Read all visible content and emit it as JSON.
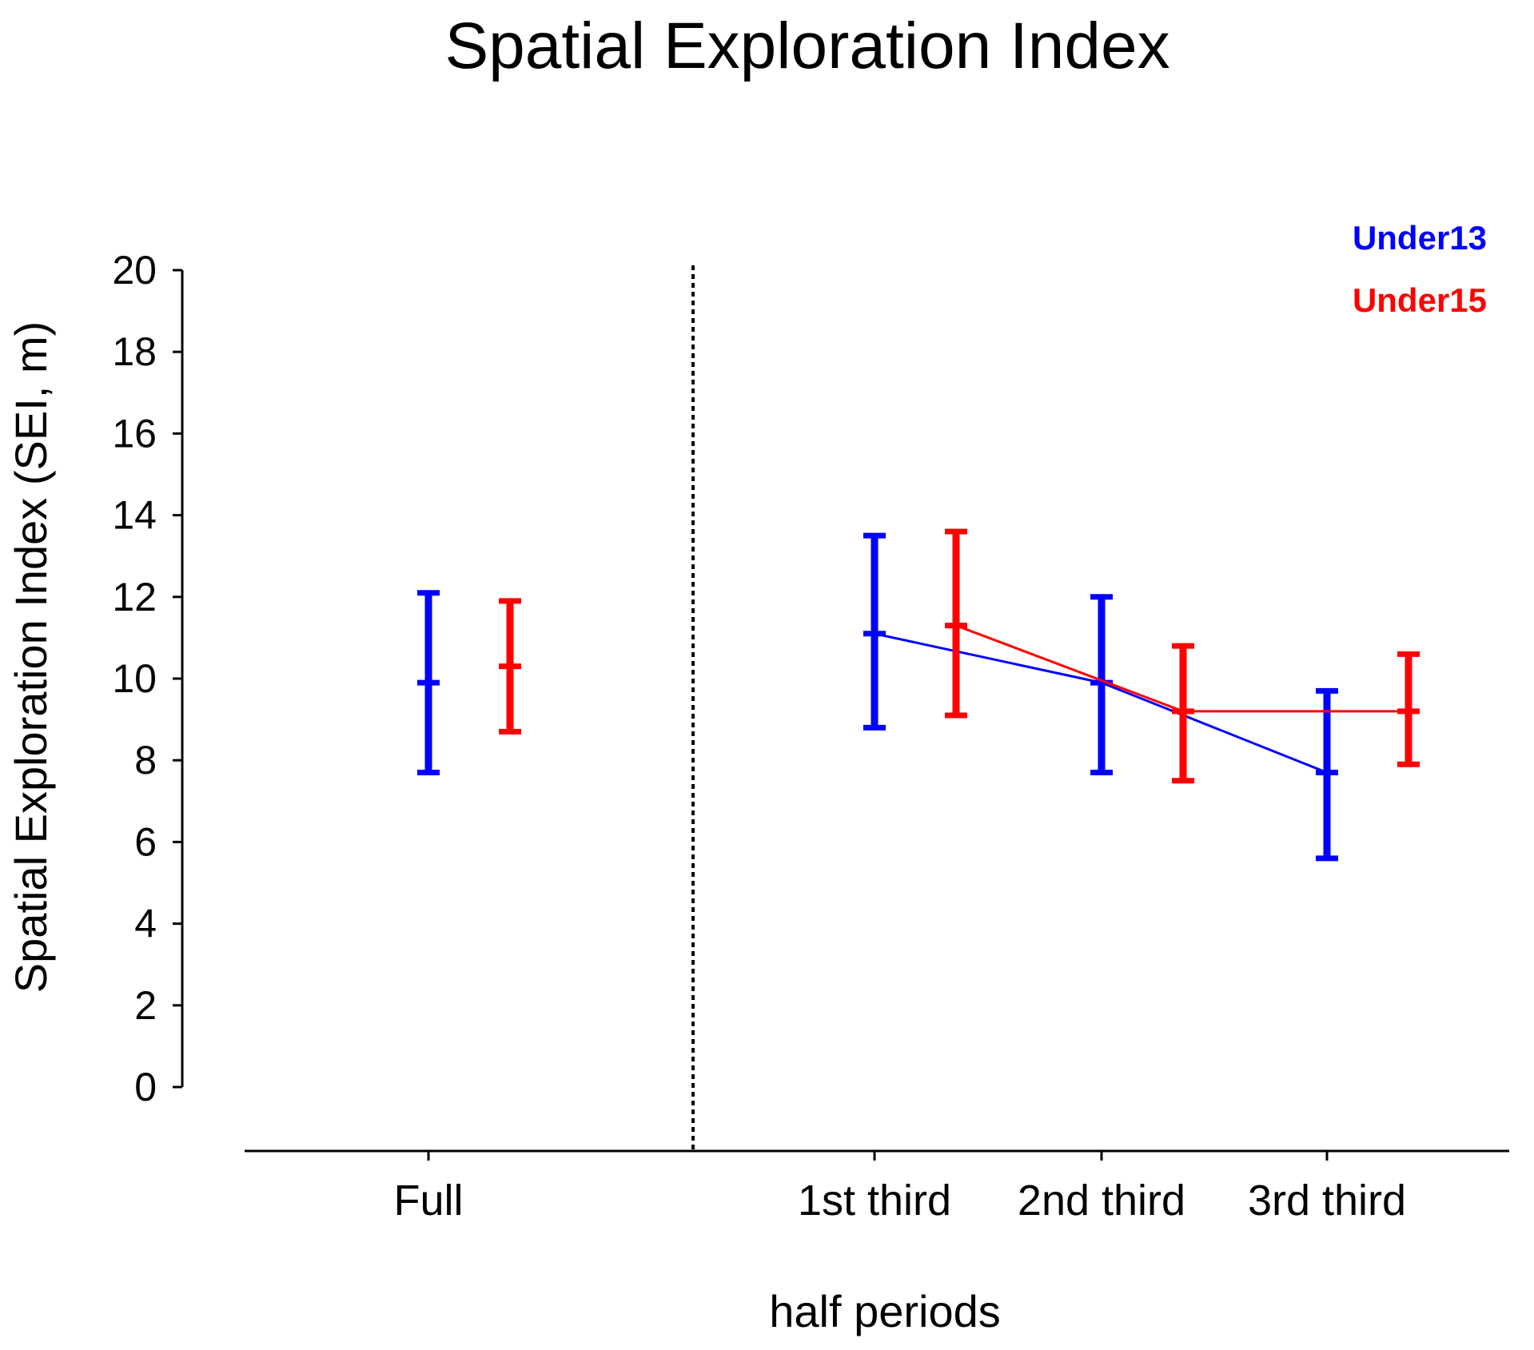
{
  "chart_data": {
    "type": "line",
    "title": "Spatial Exploration Index",
    "xlabel": "half periods",
    "ylabel": "Spatial Exploration Index (SEI, m)",
    "ylim": [
      0,
      20
    ],
    "yticks": [
      0,
      2,
      4,
      6,
      8,
      10,
      12,
      14,
      16,
      18,
      20
    ],
    "categories": [
      "Full",
      "1st third",
      "2nd third",
      "3rd third"
    ],
    "divider_after": "Full",
    "connected_categories": [
      "1st third",
      "2nd third",
      "3rd third"
    ],
    "legend_position": "top-right",
    "series": [
      {
        "name": "Under13",
        "color": "#0000ff",
        "values": [
          9.9,
          11.1,
          9.9,
          7.7
        ],
        "lower": [
          7.7,
          8.8,
          7.7,
          5.6
        ],
        "upper": [
          12.1,
          13.5,
          12.0,
          9.7
        ]
      },
      {
        "name": "Under15",
        "color": "#ff0000",
        "values": [
          10.3,
          11.3,
          9.2,
          9.2
        ],
        "lower": [
          8.7,
          9.1,
          7.5,
          7.9
        ],
        "upper": [
          11.9,
          13.6,
          10.8,
          10.6
        ]
      }
    ]
  }
}
